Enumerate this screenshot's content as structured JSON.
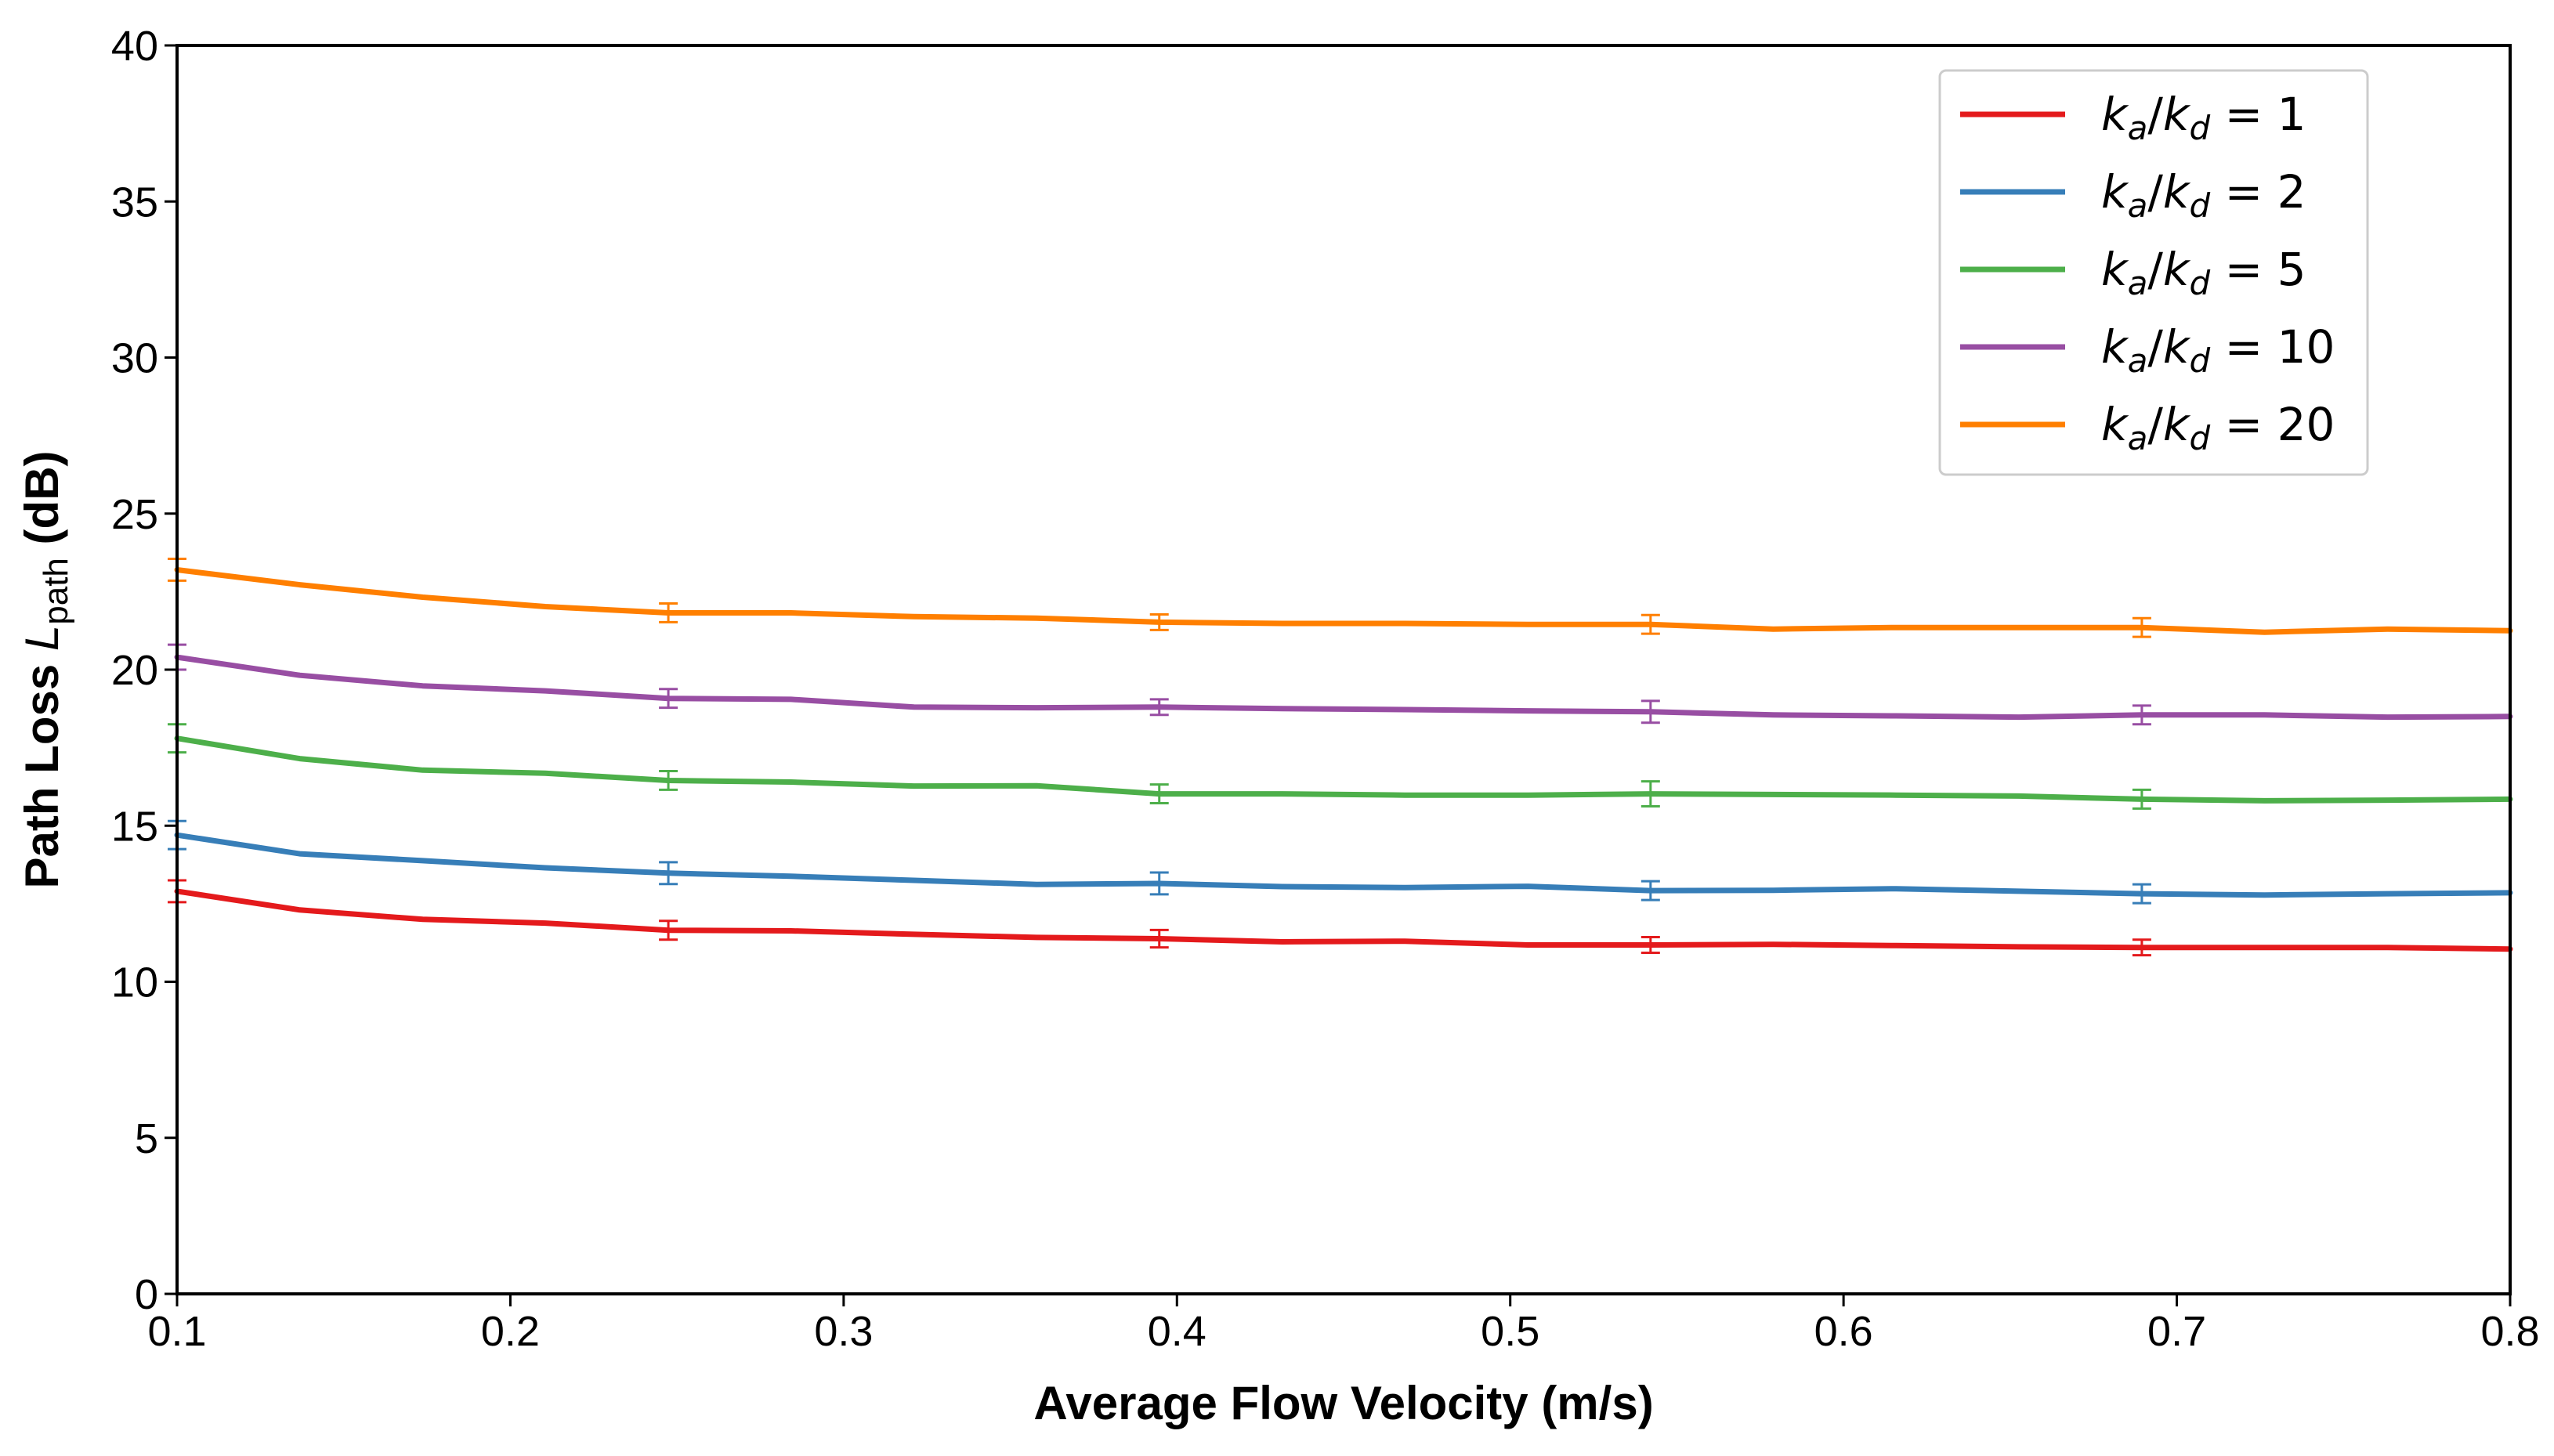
{
  "chart_data": {
    "type": "line",
    "title": "",
    "xlabel": "Average Flow Velocity (m/s)",
    "ylabel": {
      "prefix": "Path Loss ",
      "symbol": "L",
      "subscript": "path",
      "suffix": " (dB)"
    },
    "xlim": [
      0.1,
      0.8
    ],
    "ylim": [
      0,
      40
    ],
    "xticks": [
      0.1,
      0.2,
      0.3,
      0.4,
      0.5,
      0.6,
      0.7,
      0.8
    ],
    "xtick_labels": [
      "0.1",
      "0.2",
      "0.3",
      "0.4",
      "0.5",
      "0.6",
      "0.7",
      "0.8"
    ],
    "yticks": [
      0,
      5,
      10,
      15,
      20,
      25,
      30,
      35,
      40
    ],
    "ytick_labels": [
      "0",
      "5",
      "10",
      "15",
      "20",
      "25",
      "30",
      "35",
      "40"
    ],
    "grid": false,
    "legend_position": "top-right",
    "x": [
      0.1,
      0.1368,
      0.1737,
      0.2105,
      0.2474,
      0.2842,
      0.3211,
      0.3579,
      0.3947,
      0.4316,
      0.4684,
      0.5053,
      0.5421,
      0.5789,
      0.6158,
      0.6526,
      0.6895,
      0.7263,
      0.7632,
      0.8
    ],
    "error_bar_x": [
      0.1,
      0.2474,
      0.3947,
      0.5421,
      0.6895
    ],
    "series": [
      {
        "name": "k_a/k_d = 1",
        "label_parts": {
          "k1": "k",
          "s1": "a",
          "k2": "k",
          "s2": "d",
          "value": "1"
        },
        "color": "#e41a1c",
        "values": [
          12.9,
          12.3,
          12.0,
          11.88,
          11.65,
          11.63,
          11.52,
          11.42,
          11.38,
          11.28,
          11.3,
          11.18,
          11.18,
          11.2,
          11.16,
          11.12,
          11.1,
          11.1,
          11.1,
          11.05
        ],
        "errors": [
          0.35,
          0.3,
          0.28,
          0.25,
          0.25
        ]
      },
      {
        "name": "k_a/k_d = 2",
        "label_parts": {
          "k1": "k",
          "s1": "a",
          "k2": "k",
          "s2": "d",
          "value": "2"
        },
        "color": "#377eb8",
        "values": [
          14.7,
          14.1,
          13.88,
          13.65,
          13.48,
          13.38,
          13.25,
          13.12,
          13.15,
          13.05,
          13.02,
          13.06,
          12.92,
          12.93,
          12.98,
          12.9,
          12.82,
          12.78,
          12.82,
          12.85
        ],
        "errors": [
          0.45,
          0.35,
          0.35,
          0.3,
          0.3
        ]
      },
      {
        "name": "k_a/k_d = 5",
        "label_parts": {
          "k1": "k",
          "s1": "a",
          "k2": "k",
          "s2": "d",
          "value": "5"
        },
        "color": "#4daf4a",
        "values": [
          17.8,
          17.15,
          16.78,
          16.68,
          16.45,
          16.4,
          16.27,
          16.28,
          16.02,
          16.02,
          15.98,
          15.98,
          16.02,
          16.0,
          15.98,
          15.95,
          15.85,
          15.8,
          15.82,
          15.85
        ],
        "errors": [
          0.45,
          0.3,
          0.3,
          0.4,
          0.3
        ]
      },
      {
        "name": "k_a/k_d = 10",
        "label_parts": {
          "k1": "k",
          "s1": "a",
          "k2": "k",
          "s2": "d",
          "value": "10"
        },
        "color": "#984ea3",
        "values": [
          20.4,
          19.82,
          19.48,
          19.32,
          19.08,
          19.05,
          18.8,
          18.78,
          18.8,
          18.75,
          18.72,
          18.68,
          18.65,
          18.55,
          18.52,
          18.48,
          18.55,
          18.55,
          18.48,
          18.5
        ],
        "errors": [
          0.4,
          0.3,
          0.25,
          0.35,
          0.3
        ]
      },
      {
        "name": "k_a/k_d = 20",
        "label_parts": {
          "k1": "k",
          "s1": "a",
          "k2": "k",
          "s2": "d",
          "value": "20"
        },
        "color": "#ff7f00",
        "values": [
          23.2,
          22.72,
          22.32,
          22.02,
          21.82,
          21.82,
          21.7,
          21.65,
          21.52,
          21.48,
          21.48,
          21.45,
          21.45,
          21.3,
          21.35,
          21.35,
          21.35,
          21.2,
          21.3,
          21.25
        ],
        "errors": [
          0.35,
          0.3,
          0.25,
          0.3,
          0.3
        ]
      }
    ]
  }
}
